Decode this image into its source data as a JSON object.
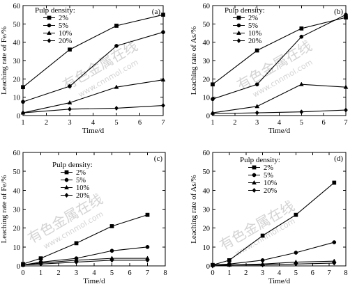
{
  "watermark": {
    "cn": "有色金属在线",
    "url": "www.cnnmol.com"
  },
  "chart_data": [
    {
      "panel": "(a)",
      "type": "line",
      "xlabel": "Time/d",
      "ylabel": "Leaching rate of Fe/%",
      "xlim": [
        1,
        7
      ],
      "ylim": [
        0,
        60
      ],
      "xticks": [
        1,
        2,
        3,
        4,
        5,
        6,
        7
      ],
      "yticks": [
        0,
        10,
        20,
        30,
        40,
        50,
        60
      ],
      "legend_title": "Pulp density:",
      "legend_position": "top-left",
      "series": [
        {
          "name": "2%",
          "marker": "square",
          "x": [
            1,
            3,
            5,
            7
          ],
          "y": [
            15.5,
            36,
            49,
            55
          ]
        },
        {
          "name": "5%",
          "marker": "circle",
          "x": [
            1,
            3,
            5,
            7
          ],
          "y": [
            7.5,
            16,
            38,
            45.5
          ]
        },
        {
          "name": "10%",
          "marker": "triangle",
          "x": [
            1,
            3,
            5,
            7
          ],
          "y": [
            1.5,
            7,
            15.5,
            19.5
          ]
        },
        {
          "name": "20%",
          "marker": "diamond",
          "x": [
            1,
            3,
            5,
            7
          ],
          "y": [
            1.5,
            3.5,
            4,
            5.5
          ]
        }
      ]
    },
    {
      "panel": "(b)",
      "type": "line",
      "xlabel": "Time/d",
      "ylabel": "Leaching rate of As/%",
      "xlim": [
        1,
        7
      ],
      "ylim": [
        0,
        60
      ],
      "xticks": [
        1,
        2,
        3,
        4,
        5,
        6,
        7
      ],
      "yticks": [
        0,
        10,
        20,
        30,
        40,
        50,
        60
      ],
      "legend_title": "Pulp density:",
      "legend_position": "top-left",
      "series": [
        {
          "name": "2%",
          "marker": "square",
          "x": [
            1,
            3,
            5,
            7
          ],
          "y": [
            17,
            35.5,
            47.5,
            53.5
          ]
        },
        {
          "name": "5%",
          "marker": "circle",
          "x": [
            1,
            3,
            5,
            7
          ],
          "y": [
            9,
            17,
            43,
            55
          ]
        },
        {
          "name": "10%",
          "marker": "triangle",
          "x": [
            1,
            3,
            5,
            7
          ],
          "y": [
            1.5,
            5,
            17,
            15.5
          ]
        },
        {
          "name": "20%",
          "marker": "diamond",
          "x": [
            1,
            3,
            5,
            7
          ],
          "y": [
            1,
            1.5,
            2,
            3
          ]
        }
      ]
    },
    {
      "panel": "(c)",
      "type": "line",
      "xlabel": "Time/d",
      "ylabel": "Leaching rate of Fe/%",
      "xlim": [
        0,
        8
      ],
      "ylim": [
        0,
        60
      ],
      "xticks": [
        0,
        1,
        2,
        3,
        4,
        5,
        6,
        7,
        8
      ],
      "yticks": [
        0,
        10,
        20,
        30,
        40,
        50,
        60
      ],
      "legend_title": "Pulp density:",
      "legend_position": "top-center",
      "series": [
        {
          "name": "2%",
          "marker": "square",
          "x": [
            0,
            1,
            3,
            5,
            7
          ],
          "y": [
            1,
            4,
            12,
            21,
            27
          ]
        },
        {
          "name": "5%",
          "marker": "circle",
          "x": [
            0,
            1,
            3,
            5,
            7
          ],
          "y": [
            0.5,
            2,
            4,
            8,
            10
          ]
        },
        {
          "name": "10%",
          "marker": "triangle",
          "x": [
            0,
            1,
            3,
            5,
            7
          ],
          "y": [
            0.5,
            1.5,
            3,
            4,
            4
          ]
        },
        {
          "name": "20%",
          "marker": "diamond",
          "x": [
            0,
            1,
            3,
            5,
            7
          ],
          "y": [
            0.5,
            1,
            2,
            3,
            3
          ]
        }
      ]
    },
    {
      "panel": "(d)",
      "type": "line",
      "xlabel": "Time/d",
      "ylabel": "Leaching rate of As/%",
      "xlim": [
        0,
        8
      ],
      "ylim": [
        0,
        60
      ],
      "xticks": [
        0,
        1,
        2,
        3,
        4,
        5,
        6,
        7,
        8
      ],
      "yticks": [
        0,
        10,
        20,
        30,
        40,
        50,
        60
      ],
      "legend_title": "Pulp density:",
      "legend_position": "top-center",
      "series": [
        {
          "name": "2%",
          "marker": "square",
          "x": [
            0,
            1,
            3,
            5,
            7.3
          ],
          "y": [
            0.5,
            3,
            16,
            27,
            44
          ]
        },
        {
          "name": "5%",
          "marker": "circle",
          "x": [
            0,
            1,
            3,
            5,
            7.3
          ],
          "y": [
            0.5,
            1,
            3,
            7,
            12.5
          ]
        },
        {
          "name": "10%",
          "marker": "triangle",
          "x": [
            0,
            1,
            3,
            5,
            7.3
          ],
          "y": [
            0.5,
            0.5,
            1,
            2,
            2.5
          ]
        },
        {
          "name": "20%",
          "marker": "diamond",
          "x": [
            0,
            1,
            3,
            5,
            7.3
          ],
          "y": [
            0,
            0.5,
            0.5,
            1,
            1.5
          ]
        }
      ]
    }
  ]
}
